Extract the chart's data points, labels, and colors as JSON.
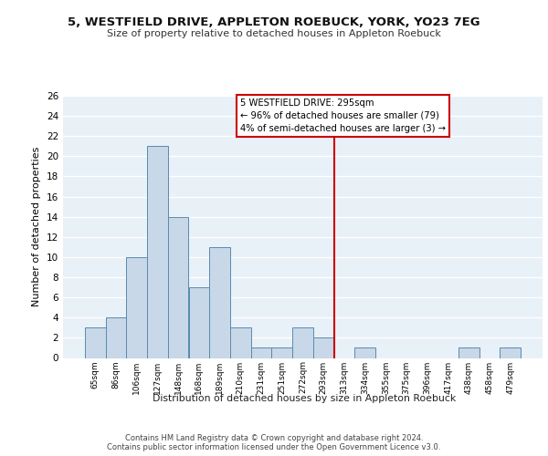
{
  "title1": "5, WESTFIELD DRIVE, APPLETON ROEBUCK, YORK, YO23 7EG",
  "title2": "Size of property relative to detached houses in Appleton Roebuck",
  "xlabel": "Distribution of detached houses by size in Appleton Roebuck",
  "ylabel": "Number of detached properties",
  "bin_labels": [
    "65sqm",
    "86sqm",
    "106sqm",
    "127sqm",
    "148sqm",
    "168sqm",
    "189sqm",
    "210sqm",
    "231sqm",
    "251sqm",
    "272sqm",
    "293sqm",
    "313sqm",
    "334sqm",
    "355sqm",
    "375sqm",
    "396sqm",
    "417sqm",
    "438sqm",
    "458sqm",
    "479sqm"
  ],
  "bar_heights": [
    3,
    4,
    10,
    21,
    14,
    7,
    11,
    3,
    1,
    1,
    3,
    2,
    0,
    1,
    0,
    0,
    0,
    0,
    1,
    0,
    1
  ],
  "bar_color": "#c8d8e8",
  "bar_edgecolor": "#5a8ab0",
  "vline_color": "#cc0000",
  "vline_pos": 11.5,
  "annotation_text": "5 WESTFIELD DRIVE: 295sqm\n← 96% of detached houses are smaller (79)\n4% of semi-detached houses are larger (3) →",
  "ylim": [
    0,
    26
  ],
  "yticks": [
    0,
    2,
    4,
    6,
    8,
    10,
    12,
    14,
    16,
    18,
    20,
    22,
    24,
    26
  ],
  "footer1": "Contains HM Land Registry data © Crown copyright and database right 2024.",
  "footer2": "Contains public sector information licensed under the Open Government Licence v3.0.",
  "bg_color": "#e8f0f8",
  "grid_color": "#ffffff"
}
